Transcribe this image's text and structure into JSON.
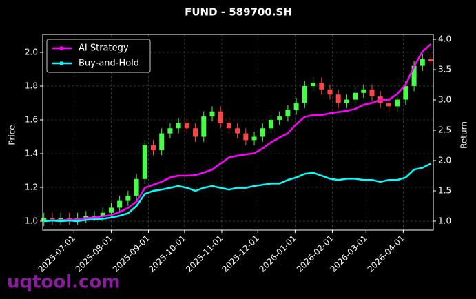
{
  "chart_data": {
    "type": "candlestick",
    "title": "FUND - 589700.SH",
    "ylabel": "Price",
    "y2label": "Return",
    "watermark": "uqtool.com",
    "x": [
      "2025-06-06",
      "2025-06-13",
      "2025-06-20",
      "2025-06-27",
      "2025-07-04",
      "2025-07-11",
      "2025-07-18",
      "2025-07-25",
      "2025-08-01",
      "2025-08-08",
      "2025-08-15",
      "2025-08-22",
      "2025-08-29",
      "2025-09-05",
      "2025-09-12",
      "2025-09-19",
      "2025-09-26",
      "2025-10-03",
      "2025-10-10",
      "2025-10-17",
      "2025-10-24",
      "2025-10-31",
      "2025-11-07",
      "2025-11-14",
      "2025-11-21",
      "2025-11-28",
      "2025-12-05",
      "2025-12-12",
      "2025-12-19",
      "2025-12-26",
      "2026-01-02",
      "2026-01-09",
      "2026-01-16",
      "2026-01-23",
      "2026-01-30",
      "2026-02-06",
      "2026-02-13",
      "2026-02-20",
      "2026-02-27",
      "2026-03-06",
      "2026-03-13",
      "2026-03-20",
      "2026-03-27",
      "2026-04-03",
      "2026-04-10",
      "2026-04-17",
      "2026-04-24"
    ],
    "open": [
      1.0,
      1.02,
      1.01,
      1.02,
      1.01,
      1.02,
      1.03,
      1.03,
      1.05,
      1.08,
      1.12,
      1.15,
      1.25,
      1.45,
      1.42,
      1.52,
      1.55,
      1.58,
      1.55,
      1.5,
      1.62,
      1.65,
      1.58,
      1.55,
      1.52,
      1.48,
      1.5,
      1.55,
      1.6,
      1.62,
      1.66,
      1.7,
      1.8,
      1.82,
      1.78,
      1.75,
      1.7,
      1.72,
      1.76,
      1.78,
      1.74,
      1.7,
      1.68,
      1.72,
      1.8,
      1.92,
      1.96
    ],
    "high": [
      1.05,
      1.05,
      1.05,
      1.05,
      1.05,
      1.06,
      1.06,
      1.08,
      1.11,
      1.15,
      1.18,
      1.28,
      1.48,
      1.48,
      1.55,
      1.58,
      1.61,
      1.61,
      1.58,
      1.65,
      1.68,
      1.68,
      1.61,
      1.58,
      1.55,
      1.53,
      1.58,
      1.63,
      1.65,
      1.69,
      1.73,
      1.83,
      1.85,
      1.85,
      1.81,
      1.78,
      1.75,
      1.79,
      1.81,
      1.81,
      1.77,
      1.73,
      1.75,
      1.83,
      1.95,
      1.99,
      1.99
    ],
    "low": [
      0.97,
      0.98,
      0.98,
      0.98,
      0.98,
      0.99,
      1.0,
      1.0,
      1.02,
      1.05,
      1.09,
      1.12,
      1.22,
      1.39,
      1.39,
      1.49,
      1.52,
      1.52,
      1.47,
      1.47,
      1.59,
      1.55,
      1.52,
      1.49,
      1.45,
      1.45,
      1.47,
      1.52,
      1.57,
      1.59,
      1.63,
      1.67,
      1.77,
      1.75,
      1.72,
      1.67,
      1.67,
      1.69,
      1.73,
      1.71,
      1.67,
      1.65,
      1.65,
      1.69,
      1.77,
      1.89,
      1.92
    ],
    "close": [
      1.02,
      1.01,
      1.02,
      1.01,
      1.02,
      1.03,
      1.03,
      1.05,
      1.08,
      1.12,
      1.15,
      1.25,
      1.45,
      1.42,
      1.52,
      1.55,
      1.58,
      1.55,
      1.5,
      1.62,
      1.65,
      1.58,
      1.55,
      1.52,
      1.48,
      1.5,
      1.55,
      1.6,
      1.62,
      1.66,
      1.7,
      1.8,
      1.82,
      1.78,
      1.75,
      1.7,
      1.72,
      1.76,
      1.78,
      1.74,
      1.7,
      1.68,
      1.72,
      1.8,
      1.92,
      1.96,
      1.95
    ],
    "up_color": "#44ff44",
    "down_color": "#ff4444",
    "series": [
      {
        "name": "AI Strategy",
        "color": "#ff00ff",
        "axis": "y2",
        "values": [
          1.0,
          1.01,
          1.02,
          1.02,
          1.03,
          1.05,
          1.06,
          1.08,
          1.1,
          1.15,
          1.22,
          1.32,
          1.55,
          1.6,
          1.65,
          1.72,
          1.75,
          1.75,
          1.76,
          1.8,
          1.85,
          1.95,
          2.05,
          2.08,
          2.1,
          2.12,
          2.2,
          2.3,
          2.38,
          2.45,
          2.6,
          2.72,
          2.75,
          2.75,
          2.78,
          2.8,
          2.82,
          2.85,
          2.92,
          2.95,
          3.0,
          3.0,
          3.1,
          3.25,
          3.55,
          3.8,
          3.92
        ]
      },
      {
        "name": "Buy-and-Hold",
        "color": "#00ffff",
        "axis": "y2",
        "values": [
          1.0,
          1.01,
          1.0,
          1.01,
          1.0,
          1.02,
          1.03,
          1.04,
          1.06,
          1.09,
          1.13,
          1.25,
          1.45,
          1.5,
          1.52,
          1.55,
          1.58,
          1.55,
          1.5,
          1.55,
          1.58,
          1.55,
          1.52,
          1.55,
          1.55,
          1.58,
          1.6,
          1.62,
          1.62,
          1.68,
          1.72,
          1.78,
          1.8,
          1.75,
          1.7,
          1.68,
          1.7,
          1.7,
          1.68,
          1.68,
          1.65,
          1.68,
          1.68,
          1.72,
          1.85,
          1.88,
          1.95
        ]
      }
    ],
    "xlim": [
      "2025-06-05",
      "2026-04-26"
    ],
    "xticks": [
      "2025-07-01",
      "2025-08-01",
      "2025-09-01",
      "2025-10-01",
      "2025-11-01",
      "2025-12-01",
      "2026-01-01",
      "2026-02-01",
      "2026-03-01",
      "2026-04-01"
    ],
    "ylim": [
      0.947,
      2.106
    ],
    "yticks": [
      {
        "value": 1,
        "label": "1.0"
      },
      1.2,
      1.4,
      1.6,
      1.8,
      {
        "value": 2,
        "label": "2.0"
      }
    ],
    "y2lim": [
      0.852,
      4.08
    ],
    "y2ticks": [
      {
        "value": 1,
        "label": "1.0"
      },
      1.5,
      {
        "value": 2,
        "label": "2.0"
      },
      2.5,
      {
        "value": 3,
        "label": "3.0"
      },
      3.5,
      {
        "value": 4,
        "label": "4.0"
      }
    ],
    "grid": true,
    "legend": "upper-left"
  }
}
